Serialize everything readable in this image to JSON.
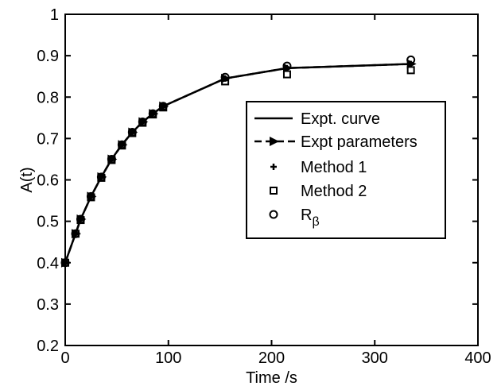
{
  "chart_data": {
    "type": "line",
    "xlabel": "Time /s",
    "ylabel": "A(t)",
    "xlim": [
      0,
      400
    ],
    "ylim": [
      0.2,
      1
    ],
    "xticks": [
      0,
      100,
      200,
      300,
      400
    ],
    "xtick_labels": [
      "0",
      "100",
      "200",
      "300",
      "400"
    ],
    "yticks": [
      0.2,
      0.3,
      0.4,
      0.5,
      0.6,
      0.7,
      0.8,
      0.9,
      1
    ],
    "ytick_labels": [
      "0.2",
      "0.3",
      "0.4",
      "0.5",
      "0.6",
      "0.7",
      "0.8",
      "0.9",
      "1"
    ],
    "grid": false,
    "legend_position": "center-right",
    "series": [
      {
        "name": "Expt. curve",
        "style": "solid-line",
        "x": [
          0,
          10,
          15,
          25,
          35,
          45,
          55,
          65,
          75,
          85,
          95,
          155,
          215,
          335
        ],
        "y": [
          0.4,
          0.47,
          0.505,
          0.56,
          0.607,
          0.65,
          0.685,
          0.715,
          0.74,
          0.76,
          0.778,
          0.845,
          0.87,
          0.88
        ]
      },
      {
        "name": "Expt parameters",
        "style": "dashed-line-triangle",
        "x": [
          0,
          10,
          15,
          25,
          35,
          45,
          55,
          65,
          75,
          85,
          95,
          155,
          215,
          335
        ],
        "y": [
          0.4,
          0.47,
          0.505,
          0.56,
          0.607,
          0.65,
          0.685,
          0.715,
          0.74,
          0.76,
          0.778,
          0.845,
          0.87,
          0.88
        ]
      },
      {
        "name": "Method 1",
        "style": "plus",
        "x": [
          0,
          10,
          15,
          25,
          35,
          45,
          55,
          65,
          75,
          85,
          95,
          155,
          215,
          335
        ],
        "y": [
          0.4,
          0.47,
          0.505,
          0.56,
          0.607,
          0.65,
          0.685,
          0.715,
          0.74,
          0.76,
          0.778,
          0.845,
          0.87,
          0.88
        ]
      },
      {
        "name": "Method 2",
        "style": "square",
        "x": [
          0,
          10,
          15,
          25,
          35,
          45,
          55,
          65,
          75,
          85,
          95,
          155,
          215,
          335
        ],
        "y": [
          0.4,
          0.47,
          0.503,
          0.558,
          0.605,
          0.648,
          0.683,
          0.713,
          0.738,
          0.758,
          0.775,
          0.838,
          0.855,
          0.865
        ]
      },
      {
        "name": "R",
        "name_subscript": "β",
        "style": "circle",
        "x": [
          0,
          10,
          15,
          25,
          35,
          45,
          55,
          65,
          75,
          85,
          95,
          155,
          215,
          335
        ],
        "y": [
          0.4,
          0.47,
          0.505,
          0.56,
          0.607,
          0.65,
          0.685,
          0.715,
          0.74,
          0.76,
          0.778,
          0.848,
          0.875,
          0.89
        ]
      }
    ]
  }
}
